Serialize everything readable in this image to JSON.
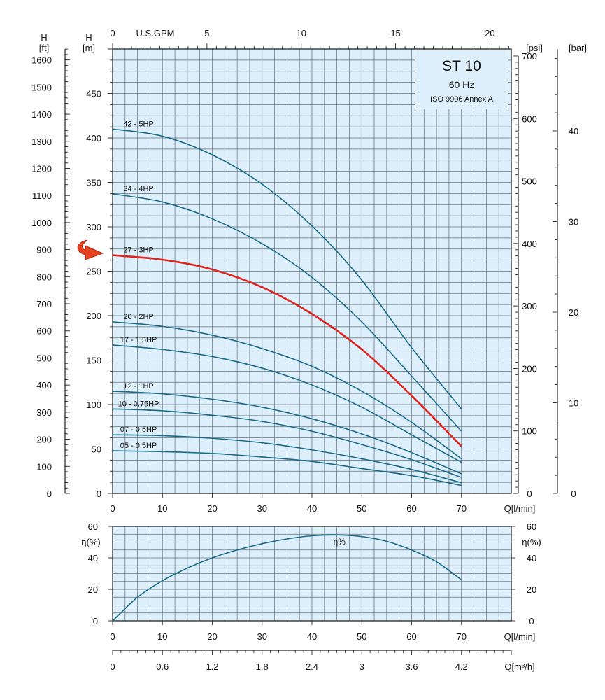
{
  "chart_data": [
    {
      "type": "line",
      "panel": "head",
      "x_axis": {
        "label": "Q[l/min]",
        "range": [
          0,
          70
        ],
        "ticks": [
          0,
          10,
          20,
          30,
          40,
          50,
          60,
          70
        ]
      },
      "y_axis_m": {
        "label_top": "H",
        "unit": "[m]",
        "range": [
          0,
          450
        ],
        "ticks": [
          0,
          50,
          100,
          150,
          200,
          250,
          300,
          350,
          400,
          450
        ]
      },
      "y_axis_ft": {
        "label_top": "H",
        "unit": "[ft]",
        "ticks": [
          0,
          100,
          200,
          300,
          400,
          500,
          600,
          700,
          800,
          900,
          1000,
          1100,
          1200,
          1300,
          1400,
          1500,
          1600
        ]
      },
      "y_axis_psi": {
        "unit": "[psi]",
        "ticks": [
          0,
          100,
          200,
          300,
          400,
          500,
          600,
          700
        ]
      },
      "y_axis_bar": {
        "unit": "[bar]",
        "ticks": [
          0,
          10,
          20,
          30,
          40
        ]
      },
      "top_axis": {
        "label": "U.S.GPM",
        "ticks": [
          0,
          5,
          10,
          15,
          20
        ]
      },
      "grid": true,
      "highlight_arrow": true,
      "series": [
        {
          "name": "42 - 5HP",
          "color": "#1a6a8a",
          "x": [
            0,
            10,
            20,
            30,
            40,
            50,
            60,
            70
          ],
          "y": [
            410,
            402,
            381,
            348,
            301,
            240,
            164,
            95
          ]
        },
        {
          "name": "34 - 4HP",
          "color": "#1a6a8a",
          "x": [
            0,
            10,
            20,
            30,
            40,
            50,
            60,
            70
          ],
          "y": [
            337,
            328,
            309,
            281,
            243,
            193,
            132,
            70
          ]
        },
        {
          "name": "27 - 3HP",
          "color": "#e0231e",
          "x": [
            0,
            10,
            20,
            30,
            40,
            50,
            60,
            70
          ],
          "y": [
            268,
            263,
            252,
            232,
            202,
            162,
            110,
            53
          ]
        },
        {
          "name": "20 - 2HP",
          "color": "#1a6a8a",
          "x": [
            0,
            10,
            20,
            30,
            40,
            50,
            60,
            70
          ],
          "y": [
            193,
            188,
            178,
            163,
            143,
            115,
            80,
            39
          ]
        },
        {
          "name": "17 - 1.5HP",
          "color": "#1a6a8a",
          "x": [
            0,
            10,
            20,
            30,
            40,
            50,
            60,
            70
          ],
          "y": [
            167,
            162,
            154,
            141,
            122,
            97,
            66,
            35
          ]
        },
        {
          "name": "12 - 1HP",
          "color": "#1a6a8a",
          "x": [
            0,
            10,
            20,
            30,
            40,
            50,
            60,
            70
          ],
          "y": [
            115,
            112,
            106,
            97,
            84,
            67,
            46,
            22
          ]
        },
        {
          "name": "10 - 0.75HP",
          "color": "#1a6a8a",
          "x": [
            0,
            10,
            20,
            30,
            40,
            50,
            60,
            70
          ],
          "y": [
            95,
            93,
            88,
            81,
            70,
            55,
            38,
            18
          ]
        },
        {
          "name": "07 - 0.5HP",
          "color": "#1a6a8a",
          "x": [
            0,
            10,
            20,
            30,
            40,
            50,
            60,
            70
          ],
          "y": [
            66,
            65,
            62,
            57,
            49,
            39,
            27,
            12
          ]
        },
        {
          "name": "05 - 0.5HP",
          "color": "#1a6a8a",
          "x": [
            0,
            10,
            20,
            30,
            40,
            50,
            60,
            70
          ],
          "y": [
            48,
            47,
            45,
            41,
            36,
            28,
            20,
            9
          ]
        }
      ]
    },
    {
      "type": "line",
      "panel": "efficiency",
      "x_axis": {
        "label": "Q[l/min]",
        "range": [
          0,
          70
        ],
        "ticks": [
          0,
          10,
          20,
          30,
          40,
          50,
          60,
          70
        ]
      },
      "y_axis": {
        "label": "η(%)",
        "range": [
          0,
          60
        ],
        "ticks": [
          0,
          20,
          40,
          60
        ]
      },
      "x2_axis": {
        "label": "Q[m³/h]",
        "ticks": [
          "0",
          "0.6",
          "1.2",
          "1.8",
          "2.4",
          "3",
          "3.6",
          "4.2"
        ]
      },
      "grid": true,
      "series": [
        {
          "name": "η%",
          "color": "#1a6a8a",
          "x": [
            0,
            5,
            10,
            15,
            20,
            25,
            30,
            35,
            40,
            45,
            50,
            55,
            60,
            65,
            70
          ],
          "y": [
            0,
            15,
            25.5,
            33.5,
            40,
            45,
            49,
            52,
            54,
            54.5,
            53.5,
            50.5,
            45,
            37.5,
            26
          ]
        }
      ]
    }
  ],
  "info_box": {
    "title": "ST 10",
    "frequency": "60 Hz",
    "standard": "ISO 9906 Annex A"
  },
  "colors": {
    "plot_background": "#ddeffb",
    "grid": "#5f6f7a",
    "curve": "#1a6a8a",
    "highlight": "#e0231e",
    "arrow": "#e8431f"
  }
}
